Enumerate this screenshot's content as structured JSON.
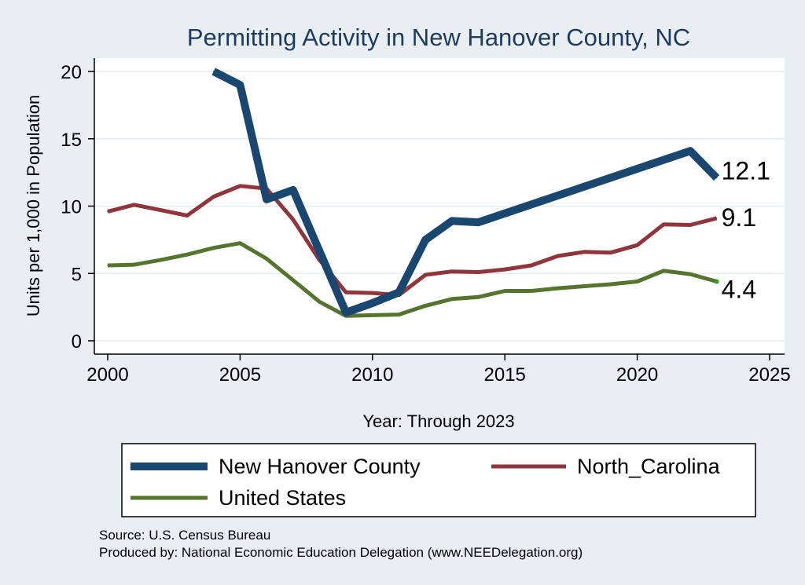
{
  "chart_data": {
    "type": "line",
    "title": "Permitting Activity in New Hanover County, NC",
    "xlabel": "Year: Through 2023",
    "ylabel": "Units per 1,000 in Population",
    "xlim": [
      2000,
      2025
    ],
    "ylim": [
      0,
      20
    ],
    "xticks": [
      2000,
      2005,
      2010,
      2015,
      2020,
      2025
    ],
    "yticks": [
      0,
      5,
      10,
      15,
      20
    ],
    "grid": true,
    "legend_position": "bottom",
    "series": [
      {
        "name": "New Hanover County",
        "color": "#1a476f",
        "x": [
          2004,
          2005,
          2006,
          2007,
          2009,
          2010,
          2011,
          2012,
          2013,
          2014,
          2022,
          2023
        ],
        "values": [
          20.0,
          19.0,
          10.5,
          11.2,
          2.1,
          2.8,
          3.6,
          7.5,
          8.9,
          8.8,
          14.1,
          12.1
        ],
        "end_label": "12.1"
      },
      {
        "name": "North_Carolina",
        "color": "#90353b",
        "x": [
          2000,
          2001,
          2002,
          2003,
          2004,
          2005,
          2006,
          2007,
          2008,
          2009,
          2010,
          2011,
          2012,
          2013,
          2014,
          2015,
          2016,
          2017,
          2018,
          2019,
          2020,
          2021,
          2022,
          2023
        ],
        "values": [
          9.6,
          10.1,
          9.7,
          9.3,
          10.7,
          11.5,
          11.3,
          9.0,
          6.0,
          3.6,
          3.55,
          3.4,
          4.9,
          5.15,
          5.1,
          5.3,
          5.6,
          6.3,
          6.6,
          6.55,
          7.1,
          8.65,
          8.6,
          9.1
        ],
        "end_label": "9.1"
      },
      {
        "name": "United States",
        "color": "#55752f",
        "x": [
          2000,
          2001,
          2002,
          2003,
          2004,
          2005,
          2006,
          2007,
          2008,
          2009,
          2010,
          2011,
          2012,
          2013,
          2014,
          2015,
          2016,
          2017,
          2018,
          2019,
          2020,
          2021,
          2022,
          2023
        ],
        "values": [
          5.6,
          5.65,
          6.0,
          6.4,
          6.9,
          7.25,
          6.1,
          4.5,
          2.9,
          1.85,
          1.9,
          1.95,
          2.6,
          3.1,
          3.25,
          3.7,
          3.7,
          3.9,
          4.05,
          4.2,
          4.4,
          5.2,
          4.95,
          4.4
        ],
        "end_label": "4.4"
      }
    ]
  },
  "footer": {
    "source": "Source: U.S. Census Bureau",
    "produced_by": "Produced by: National Economic Education Delegation (www.NEEDelegation.org)"
  }
}
